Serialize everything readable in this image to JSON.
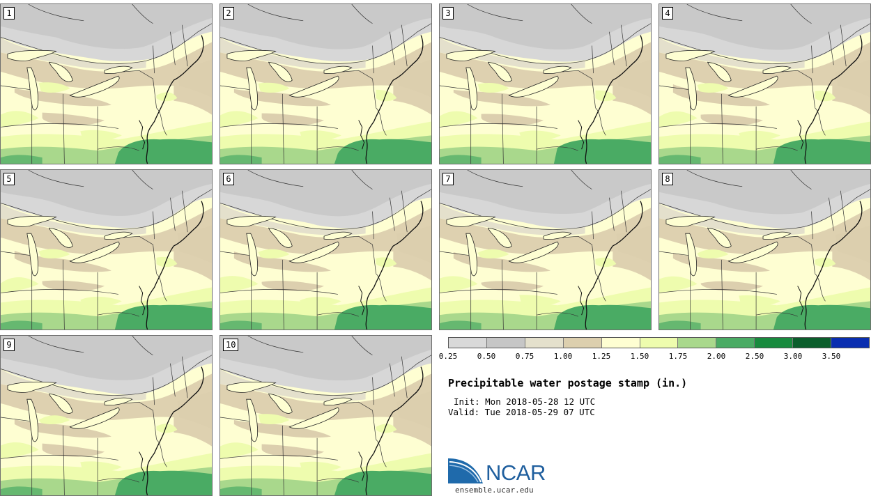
{
  "stamps": [
    {
      "label": "1"
    },
    {
      "label": "2"
    },
    {
      "label": "3"
    },
    {
      "label": "4"
    },
    {
      "label": "5"
    },
    {
      "label": "6"
    },
    {
      "label": "7"
    },
    {
      "label": "8"
    },
    {
      "label": "9"
    },
    {
      "label": "10"
    }
  ],
  "colorbar": {
    "colors": [
      "#d9d9d9",
      "#c6c6c6",
      "#e4e0cc",
      "#dccfae",
      "#fefed2",
      "#eefcae",
      "#a9d88c",
      "#4aab64",
      "#188a3e",
      "#0b5e2c",
      "#0a2eb0"
    ],
    "tick_labels": [
      "0.25",
      "0.50",
      "0.75",
      "1.00",
      "1.25",
      "1.50",
      "1.75",
      "2.00",
      "2.50",
      "3.00",
      "3.50"
    ]
  },
  "title": "Precipitable water postage stamp (in.)",
  "init": "Init: Mon 2018-05-28 12 UTC",
  "valid": "Valid: Tue 2018-05-29 07 UTC",
  "logo": {
    "text": "NCAR",
    "site": "ensemble.ucar.edu"
  }
}
